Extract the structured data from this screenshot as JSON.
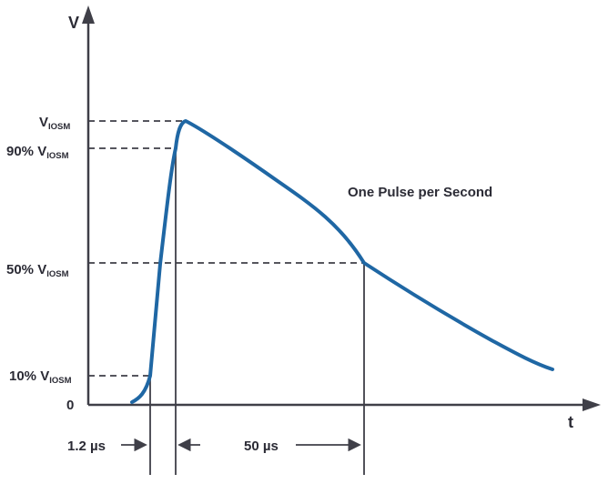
{
  "diagram": {
    "axes": {
      "y_label": "V",
      "x_label": "t",
      "origin_label": "0"
    },
    "voltage_levels": {
      "peak": {
        "prefix": "V",
        "subscript": "IOSM"
      },
      "ninety": {
        "prefix": "90% V",
        "subscript": "IOSM"
      },
      "fifty": {
        "prefix": "50% V",
        "subscript": "IOSM"
      },
      "ten": {
        "prefix": "10% V",
        "subscript": "IOSM"
      }
    },
    "annotation": "One Pulse per Second",
    "time_intervals": {
      "rise_time": "1.2 µs",
      "decay_time": "50 µs"
    },
    "colors": {
      "pulse": "#1f67a4",
      "lines": "#3f3f48",
      "text": "#2b2b35"
    }
  }
}
